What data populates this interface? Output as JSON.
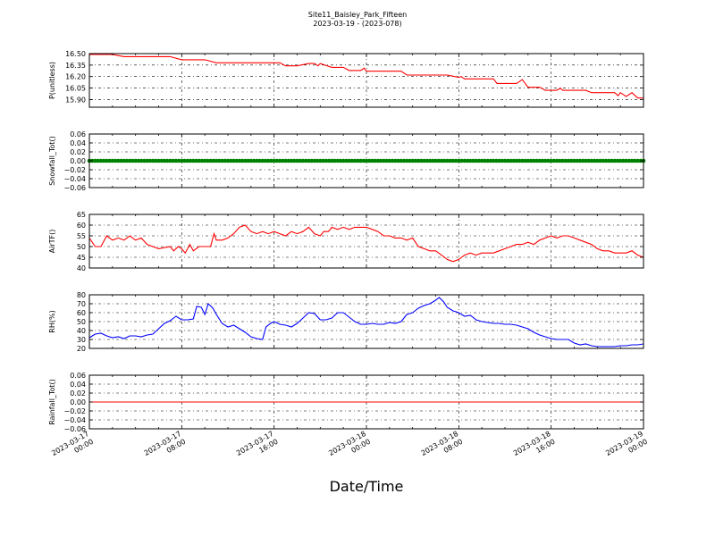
{
  "title_line1": "Site11_Baisley_Park_Fifteen",
  "title_line2": "2023-03-19 - (2023-078)",
  "xlabel": "Date/Time",
  "chart_data": {
    "type": "line",
    "x_range": [
      "2023-03-17 00:00",
      "2023-03-19 00:00"
    ],
    "x_ticks": [
      {
        "line1": "2023-03-17",
        "line2": "00:00"
      },
      {
        "line1": "2023-03-17",
        "line2": "08:00"
      },
      {
        "line1": "2023-03-17",
        "line2": "16:00"
      },
      {
        "line1": "2023-03-18",
        "line2": "00:00"
      },
      {
        "line1": "2023-03-18",
        "line2": "08:00"
      },
      {
        "line1": "2023-03-18",
        "line2": "16:00"
      },
      {
        "line1": "2023-03-19",
        "line2": "00:00"
      }
    ],
    "grid": true,
    "panels": [
      {
        "ylabel": "P(unitless)",
        "ylim": [
          15.8,
          16.5
        ],
        "yticks": [
          "16.50",
          "16.35",
          "16.20",
          "16.05",
          "15.90"
        ],
        "ytick_values": [
          16.5,
          16.35,
          16.2,
          16.05,
          15.9
        ],
        "color": "#ff0000",
        "marker": false,
        "series": [
          [
            0,
            16.49
          ],
          [
            2,
            16.49
          ],
          [
            3,
            16.46
          ],
          [
            5,
            16.46
          ],
          [
            7,
            16.46
          ],
          [
            8,
            16.42
          ],
          [
            10,
            16.42
          ],
          [
            11,
            16.38
          ],
          [
            13,
            16.38
          ],
          [
            16.5,
            16.38
          ],
          [
            17,
            16.34
          ],
          [
            18,
            16.34
          ],
          [
            19,
            16.37
          ],
          [
            19.5,
            16.37
          ],
          [
            19.8,
            16.34
          ],
          [
            20,
            16.37
          ],
          [
            21,
            16.32
          ],
          [
            22,
            16.32
          ],
          [
            22.5,
            16.28
          ],
          [
            23.5,
            16.28
          ],
          [
            23.8,
            16.31
          ],
          [
            24,
            16.27
          ],
          [
            27,
            16.27
          ],
          [
            27.5,
            16.22
          ],
          [
            31,
            16.22
          ],
          [
            32,
            16.19
          ],
          [
            32.2,
            16.2
          ],
          [
            32.5,
            16.17
          ],
          [
            35,
            16.17
          ],
          [
            35.3,
            16.11
          ],
          [
            37,
            16.11
          ],
          [
            37.5,
            16.16
          ],
          [
            38,
            16.06
          ],
          [
            39,
            16.06
          ],
          [
            39.5,
            16.02
          ],
          [
            40.5,
            16.02
          ],
          [
            40.8,
            16.05
          ],
          [
            41,
            16.02
          ],
          [
            43,
            16.02
          ],
          [
            43.5,
            15.99
          ],
          [
            45.5,
            15.99
          ],
          [
            45.8,
            15.95
          ],
          [
            46,
            15.99
          ],
          [
            46.5,
            15.94
          ],
          [
            47,
            15.99
          ],
          [
            47.5,
            15.92
          ],
          [
            48,
            15.92
          ]
        ]
      },
      {
        "ylabel": "Snowfall_Tot()",
        "ylim": [
          -0.06,
          0.06
        ],
        "yticks": [
          "0.06",
          "0.04",
          "0.02",
          "0.00",
          "−0.02",
          "−0.04",
          "−0.06"
        ],
        "ytick_values": [
          0.06,
          0.04,
          0.02,
          0.0,
          -0.02,
          -0.04,
          -0.06
        ],
        "color": "#008000",
        "marker": true,
        "series": [
          [
            0,
            0
          ],
          [
            48,
            0
          ]
        ]
      },
      {
        "ylabel": "AirTF()",
        "ylim": [
          40,
          65
        ],
        "yticks": [
          "65",
          "60",
          "55",
          "50",
          "45",
          "40"
        ],
        "ytick_values": [
          65,
          60,
          55,
          50,
          45,
          40
        ],
        "color": "#ff0000",
        "marker": false,
        "series": [
          [
            0,
            54
          ],
          [
            0.5,
            50
          ],
          [
            1,
            50
          ],
          [
            1.5,
            55
          ],
          [
            2,
            53
          ],
          [
            2.5,
            54
          ],
          [
            3,
            53
          ],
          [
            3.5,
            55
          ],
          [
            4,
            53
          ],
          [
            4.5,
            54
          ],
          [
            5,
            51
          ],
          [
            5.5,
            50
          ],
          [
            6,
            49
          ],
          [
            7,
            50
          ],
          [
            7.3,
            48
          ],
          [
            7.7,
            50
          ],
          [
            8,
            49
          ],
          [
            8.3,
            47
          ],
          [
            8.7,
            51
          ],
          [
            9,
            48
          ],
          [
            9.5,
            50
          ],
          [
            10,
            50
          ],
          [
            10.5,
            50
          ],
          [
            10.8,
            56
          ],
          [
            11,
            53
          ],
          [
            11.5,
            53
          ],
          [
            12,
            54
          ],
          [
            12.5,
            56
          ],
          [
            13,
            59
          ],
          [
            13.5,
            60
          ],
          [
            14,
            57
          ],
          [
            14.5,
            56
          ],
          [
            15,
            57
          ],
          [
            15.5,
            56
          ],
          [
            16,
            57
          ],
          [
            16.5,
            56
          ],
          [
            17,
            55
          ],
          [
            17.5,
            57
          ],
          [
            18,
            56
          ],
          [
            18.5,
            57
          ],
          [
            19,
            59
          ],
          [
            19.5,
            56
          ],
          [
            20,
            55
          ],
          [
            20.3,
            57
          ],
          [
            20.7,
            57
          ],
          [
            21,
            59
          ],
          [
            21.5,
            58
          ],
          [
            22,
            59
          ],
          [
            22.5,
            58
          ],
          [
            23,
            59
          ],
          [
            23.5,
            59
          ],
          [
            24,
            59
          ],
          [
            24.5,
            58
          ],
          [
            25,
            57
          ],
          [
            25.5,
            55
          ],
          [
            26,
            55
          ],
          [
            26.5,
            54
          ],
          [
            27,
            54
          ],
          [
            27.5,
            53
          ],
          [
            28,
            54
          ],
          [
            28.5,
            50
          ],
          [
            29,
            49
          ],
          [
            29.5,
            48
          ],
          [
            30,
            48
          ],
          [
            30.5,
            46
          ],
          [
            31,
            44
          ],
          [
            31.5,
            43
          ],
          [
            32,
            44
          ],
          [
            32.5,
            46
          ],
          [
            33,
            47
          ],
          [
            33.5,
            46
          ],
          [
            34,
            47
          ],
          [
            34.5,
            47
          ],
          [
            35,
            47
          ],
          [
            35.5,
            48
          ],
          [
            36,
            49
          ],
          [
            36.5,
            50
          ],
          [
            37,
            51
          ],
          [
            37.5,
            51
          ],
          [
            38,
            52
          ],
          [
            38.5,
            51
          ],
          [
            39,
            53
          ],
          [
            39.5,
            54
          ],
          [
            40,
            55
          ],
          [
            40.5,
            54
          ],
          [
            41,
            55
          ],
          [
            41.5,
            55
          ],
          [
            42,
            54
          ],
          [
            42.5,
            53
          ],
          [
            43,
            52
          ],
          [
            43.5,
            51
          ],
          [
            44,
            49
          ],
          [
            44.5,
            48
          ],
          [
            45,
            48
          ],
          [
            45.5,
            47
          ],
          [
            46,
            47
          ],
          [
            46.5,
            47
          ],
          [
            47,
            48
          ],
          [
            47.5,
            46
          ],
          [
            48,
            45
          ]
        ]
      },
      {
        "ylabel": "RH(%)",
        "ylim": [
          20,
          80
        ],
        "yticks": [
          "80",
          "70",
          "60",
          "50",
          "40",
          "30",
          "20"
        ],
        "ytick_values": [
          80,
          70,
          60,
          50,
          40,
          30,
          20
        ],
        "color": "#0000ff",
        "marker": false,
        "series": [
          [
            0,
            32
          ],
          [
            0.5,
            36
          ],
          [
            1,
            37
          ],
          [
            1.5,
            34
          ],
          [
            2,
            32
          ],
          [
            2.5,
            33
          ],
          [
            3,
            31
          ],
          [
            3.5,
            34
          ],
          [
            4,
            34
          ],
          [
            4.5,
            33
          ],
          [
            5,
            35
          ],
          [
            5.5,
            36
          ],
          [
            6,
            42
          ],
          [
            6.5,
            48
          ],
          [
            7,
            51
          ],
          [
            7.5,
            56
          ],
          [
            8,
            52
          ],
          [
            8.5,
            52
          ],
          [
            9,
            53
          ],
          [
            9.3,
            67
          ],
          [
            9.7,
            66
          ],
          [
            10,
            58
          ],
          [
            10.3,
            70
          ],
          [
            10.7,
            65
          ],
          [
            11,
            58
          ],
          [
            11.5,
            48
          ],
          [
            12,
            44
          ],
          [
            12.5,
            46
          ],
          [
            13,
            42
          ],
          [
            13.5,
            38
          ],
          [
            14,
            33
          ],
          [
            14.5,
            31
          ],
          [
            15,
            30
          ],
          [
            15.3,
            44
          ],
          [
            15.7,
            48
          ],
          [
            16,
            50
          ],
          [
            16.5,
            47
          ],
          [
            17,
            46
          ],
          [
            17.5,
            44
          ],
          [
            18,
            48
          ],
          [
            18.5,
            54
          ],
          [
            19,
            60
          ],
          [
            19.5,
            59
          ],
          [
            20,
            52
          ],
          [
            20.5,
            52
          ],
          [
            21,
            54
          ],
          [
            21.5,
            60
          ],
          [
            22,
            60
          ],
          [
            22.5,
            55
          ],
          [
            23,
            50
          ],
          [
            23.5,
            47
          ],
          [
            24,
            47
          ],
          [
            24.5,
            48
          ],
          [
            25,
            47
          ],
          [
            25.5,
            47
          ],
          [
            26,
            49
          ],
          [
            26.5,
            48
          ],
          [
            27,
            50
          ],
          [
            27.5,
            58
          ],
          [
            28,
            60
          ],
          [
            28.5,
            65
          ],
          [
            29,
            68
          ],
          [
            29.5,
            70
          ],
          [
            30,
            74
          ],
          [
            30.3,
            77
          ],
          [
            30.7,
            72
          ],
          [
            31,
            66
          ],
          [
            31.5,
            62
          ],
          [
            32,
            60
          ],
          [
            32.5,
            56
          ],
          [
            33,
            57
          ],
          [
            33.5,
            52
          ],
          [
            34,
            50
          ],
          [
            34.5,
            49
          ],
          [
            35,
            48
          ],
          [
            35.5,
            48
          ],
          [
            36,
            47
          ],
          [
            36.5,
            47
          ],
          [
            37,
            46
          ],
          [
            37.5,
            44
          ],
          [
            38,
            42
          ],
          [
            38.5,
            38
          ],
          [
            39,
            35
          ],
          [
            39.5,
            33
          ],
          [
            40,
            31
          ],
          [
            40.5,
            30
          ],
          [
            41,
            30
          ],
          [
            41.5,
            30
          ],
          [
            42,
            26
          ],
          [
            42.5,
            24
          ],
          [
            43,
            25
          ],
          [
            43.5,
            23
          ],
          [
            44,
            22
          ],
          [
            44.5,
            22
          ],
          [
            45,
            22
          ],
          [
            45.5,
            22
          ],
          [
            46,
            23
          ],
          [
            46.5,
            23
          ],
          [
            47,
            24
          ],
          [
            47.5,
            24
          ],
          [
            48,
            25
          ]
        ]
      },
      {
        "ylabel": "Rainfall_Tot()",
        "ylim": [
          -0.06,
          0.06
        ],
        "yticks": [
          "0.06",
          "0.04",
          "0.02",
          "0.00",
          "−0.02",
          "−0.04",
          "−0.06"
        ],
        "ytick_values": [
          0.06,
          0.04,
          0.02,
          0.0,
          -0.02,
          -0.04,
          -0.06
        ],
        "color": "#ff0000",
        "marker": false,
        "series": [
          [
            0,
            0
          ],
          [
            48,
            0
          ]
        ]
      }
    ]
  }
}
